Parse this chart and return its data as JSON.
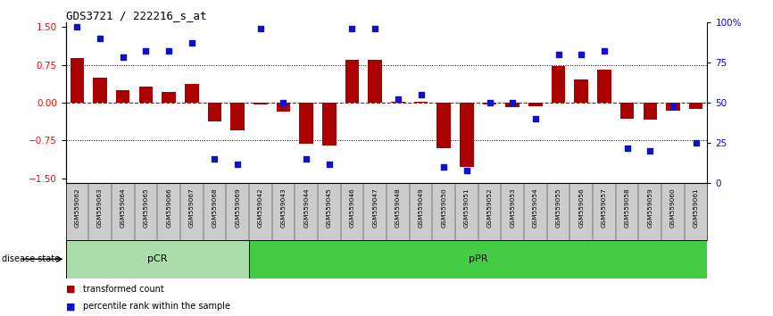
{
  "title": "GDS3721 / 222216_s_at",
  "samples": [
    "GSM559062",
    "GSM559063",
    "GSM559064",
    "GSM559065",
    "GSM559066",
    "GSM559067",
    "GSM559068",
    "GSM559069",
    "GSM559042",
    "GSM559043",
    "GSM559044",
    "GSM559045",
    "GSM559046",
    "GSM559047",
    "GSM559048",
    "GSM559049",
    "GSM559050",
    "GSM559051",
    "GSM559052",
    "GSM559053",
    "GSM559054",
    "GSM559055",
    "GSM559056",
    "GSM559057",
    "GSM559058",
    "GSM559059",
    "GSM559060",
    "GSM559061"
  ],
  "bar_values": [
    0.88,
    0.5,
    0.25,
    0.32,
    0.22,
    0.38,
    -0.38,
    -0.55,
    -0.03,
    -0.18,
    -0.82,
    -0.85,
    0.85,
    0.85,
    0.02,
    0.02,
    -0.9,
    -1.28,
    -0.04,
    -0.08,
    -0.07,
    0.72,
    0.47,
    0.65,
    -0.32,
    -0.34,
    -0.16,
    -0.13
  ],
  "percentile_values": [
    97,
    90,
    78,
    82,
    82,
    87,
    15,
    12,
    96,
    50,
    15,
    12,
    96,
    96,
    52,
    55,
    10,
    8,
    50,
    50,
    40,
    80,
    80,
    82,
    22,
    20,
    48,
    25
  ],
  "pCR_count": 8,
  "pPR_count": 20,
  "bar_color": "#AA0000",
  "dot_color": "#1111CC",
  "pCR_color": "#AADDAA",
  "pPR_color": "#44CC44",
  "left_ylim": [
    -1.6,
    1.6
  ],
  "right_ylim": [
    0,
    100
  ],
  "yticks_left": [
    -1.5,
    -0.75,
    0.0,
    0.75,
    1.5
  ],
  "yticks_right": [
    0,
    25,
    50,
    75,
    100
  ],
  "hline_zero_color": "#CC0000",
  "hline_dotted_color": "black",
  "bg_color": "white",
  "label_bg_color": "#CCCCCC"
}
